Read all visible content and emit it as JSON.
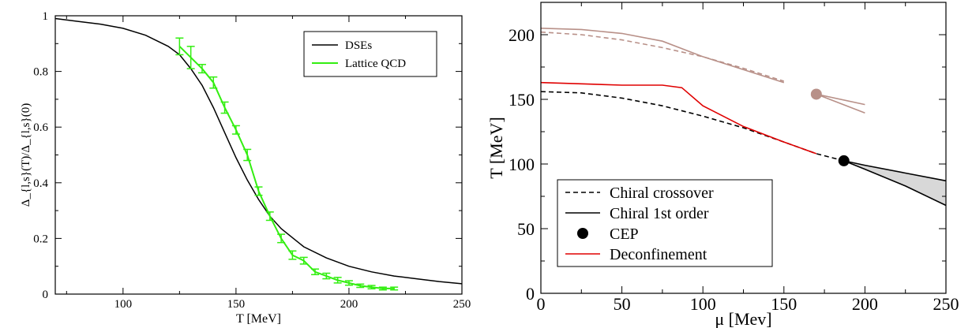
{
  "colors": {
    "dse": "#000000",
    "lattice": "#33ee11",
    "deconf": "#e00000",
    "upper": "#b89088",
    "band": "#d8d8d8",
    "cep": "#000000"
  },
  "chart_data": [
    {
      "type": "line",
      "title": "",
      "xlabel": "T [MeV]",
      "ylabel": "Δ_{l,s}(T)/Δ_{l,s}(0)",
      "xlim": [
        70,
        250
      ],
      "ylim": [
        0,
        1
      ],
      "xticks": [
        100,
        150,
        200,
        250
      ],
      "yticks": [
        0,
        0.2,
        0.4,
        0.6,
        0.8,
        1
      ],
      "ytick_labels": [
        "0",
        "0.2",
        "0.4",
        "0.6",
        "0.8",
        "1"
      ],
      "legend_position": "top-right",
      "series": [
        {
          "name": "DSEs",
          "color": "#000000",
          "x": [
            70,
            80,
            90,
            100,
            110,
            120,
            125,
            130,
            135,
            140,
            145,
            150,
            155,
            160,
            165,
            170,
            180,
            190,
            200,
            210,
            220,
            230,
            240,
            250
          ],
          "y": [
            0.99,
            0.98,
            0.97,
            0.955,
            0.93,
            0.89,
            0.86,
            0.81,
            0.75,
            0.67,
            0.58,
            0.49,
            0.41,
            0.34,
            0.28,
            0.235,
            0.17,
            0.13,
            0.1,
            0.08,
            0.065,
            0.055,
            0.045,
            0.037
          ]
        },
        {
          "name": "Lattice QCD",
          "color": "#33ee11",
          "x": [
            125,
            130,
            135,
            140,
            145,
            150,
            155,
            160,
            165,
            170,
            175,
            180,
            185,
            190,
            195,
            200,
            205,
            210,
            215,
            220
          ],
          "y": [
            0.89,
            0.85,
            0.81,
            0.76,
            0.67,
            0.59,
            0.5,
            0.37,
            0.28,
            0.2,
            0.14,
            0.12,
            0.08,
            0.065,
            0.05,
            0.04,
            0.03,
            0.025,
            0.02,
            0.02
          ],
          "err": [
            0.03,
            0.04,
            0.015,
            0.02,
            0.02,
            0.015,
            0.02,
            0.015,
            0.015,
            0.015,
            0.015,
            0.012,
            0.01,
            0.01,
            0.01,
            0.008,
            0.006,
            0.006,
            0.005,
            0.005
          ]
        }
      ]
    },
    {
      "type": "line",
      "title": "",
      "xlabel": "μ [Mev]",
      "ylabel": "T [MeV]",
      "xlim": [
        0,
        250
      ],
      "ylim": [
        0,
        225
      ],
      "xticks": [
        0,
        50,
        100,
        150,
        200,
        250
      ],
      "yticks": [
        0,
        50,
        100,
        150,
        200
      ],
      "legend_position": "bottom-left",
      "legend": [
        {
          "label": "Chiral crossover",
          "style": "dashed"
        },
        {
          "label": "Chiral 1st order",
          "style": "solid"
        },
        {
          "label": "CEP",
          "style": "dot"
        },
        {
          "label": "Deconfinement",
          "style": "red"
        }
      ],
      "series": [
        {
          "name": "Chiral crossover",
          "style": "dashed",
          "color": "#000000",
          "x": [
            0,
            25,
            50,
            75,
            100,
            125,
            150,
            170,
            187
          ],
          "y": [
            156,
            155,
            151,
            145,
            137,
            128,
            117,
            108,
            102.5
          ]
        },
        {
          "name": "Chiral 1st order",
          "style": "solid",
          "color": "#000000",
          "x": [
            187,
            200,
            225,
            250
          ],
          "y": [
            102.5,
            99,
            93,
            87
          ]
        },
        {
          "name": "",
          "style": "solid",
          "color": "#000000",
          "x": [
            187,
            200,
            225,
            250
          ],
          "y": [
            102.5,
            96,
            83,
            68
          ]
        },
        {
          "name": "Deconfinement",
          "style": "solid",
          "color": "#e00000",
          "x": [
            0,
            25,
            50,
            75,
            87,
            100,
            125,
            150,
            170
          ],
          "y": [
            163,
            162,
            161,
            161,
            159,
            145,
            129,
            117,
            108
          ]
        },
        {
          "name": "",
          "style": "solid",
          "color": "#b89088",
          "x": [
            0,
            25,
            50,
            75,
            100,
            150
          ],
          "y": [
            205,
            204,
            201,
            195,
            183,
            163
          ]
        },
        {
          "name": "",
          "style": "dashed",
          "color": "#b89088",
          "x": [
            0,
            25,
            50,
            75,
            100,
            125,
            150
          ],
          "y": [
            202,
            200,
            196,
            190,
            183,
            174,
            164
          ]
        },
        {
          "name": "",
          "style": "solid",
          "color": "#b89088",
          "x": [
            170,
            200
          ],
          "y": [
            154,
            146
          ]
        },
        {
          "name": "",
          "style": "solid",
          "color": "#b89088",
          "x": [
            170,
            200
          ],
          "y": [
            154,
            139.5
          ]
        }
      ],
      "points": [
        {
          "name": "CEP",
          "x": 187,
          "y": 102.5,
          "color": "#000000"
        },
        {
          "name": "",
          "x": 170,
          "y": 154,
          "color": "#b89088"
        }
      ]
    }
  ]
}
